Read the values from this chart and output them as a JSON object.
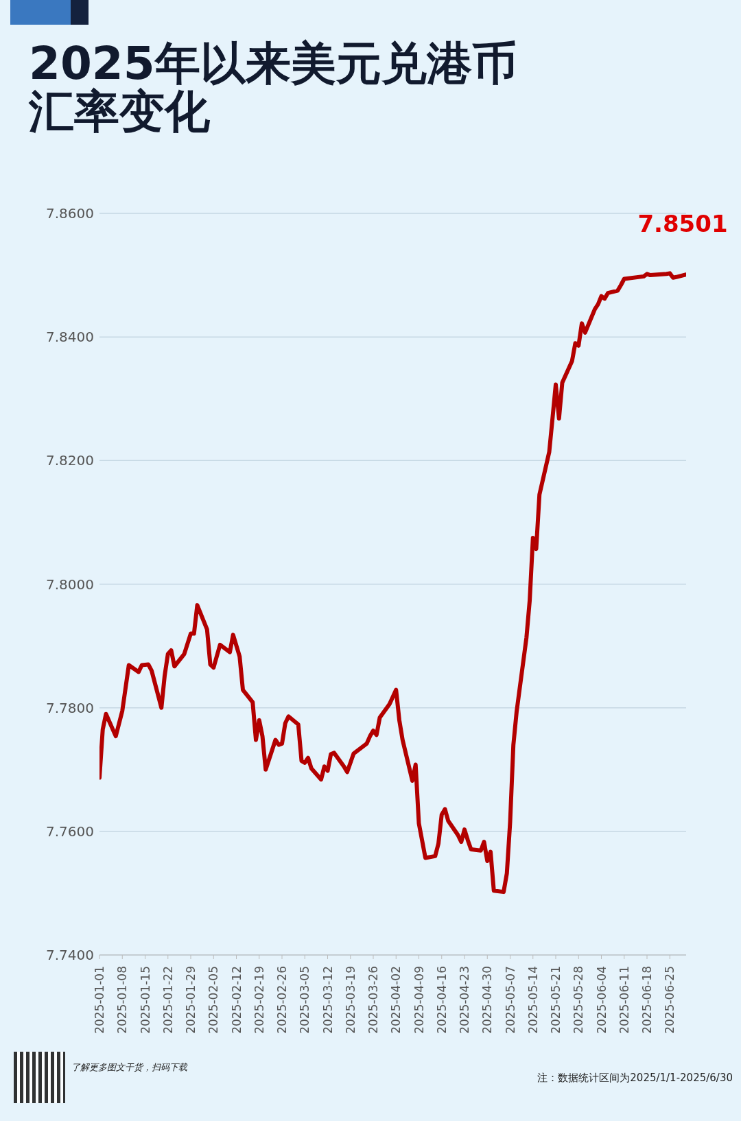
{
  "chart_data": {
    "type": "line",
    "title": "2025年以来美元兑港币汇率变化",
    "x": [
      "2025-01-01",
      "2025-01-02",
      "2025-01-03",
      "2025-01-06",
      "2025-01-08",
      "2025-01-10",
      "2025-01-13",
      "2025-01-14",
      "2025-01-16",
      "2025-01-17",
      "2025-01-20",
      "2025-01-21",
      "2025-01-22",
      "2025-01-23",
      "2025-01-24",
      "2025-01-27",
      "2025-01-29",
      "2025-01-30",
      "2025-01-31",
      "2025-02-03",
      "2025-02-04",
      "2025-02-05",
      "2025-02-07",
      "2025-02-10",
      "2025-02-11",
      "2025-02-13",
      "2025-02-14",
      "2025-02-17",
      "2025-02-18",
      "2025-02-19",
      "2025-02-20",
      "2025-02-21",
      "2025-02-24",
      "2025-02-25",
      "2025-02-26",
      "2025-02-27",
      "2025-02-28",
      "2025-03-03",
      "2025-03-04",
      "2025-03-05",
      "2025-03-06",
      "2025-03-07",
      "2025-03-10",
      "2025-03-11",
      "2025-03-12",
      "2025-03-13",
      "2025-03-14",
      "2025-03-17",
      "2025-03-18",
      "2025-03-20",
      "2025-03-24",
      "2025-03-25",
      "2025-03-26",
      "2025-03-27",
      "2025-03-28",
      "2025-03-31",
      "2025-04-02",
      "2025-04-03",
      "2025-04-04",
      "2025-04-07",
      "2025-04-08",
      "2025-04-09",
      "2025-04-11",
      "2025-04-14",
      "2025-04-15",
      "2025-04-16",
      "2025-04-17",
      "2025-04-18",
      "2025-04-21",
      "2025-04-22",
      "2025-04-23",
      "2025-04-24",
      "2025-04-25",
      "2025-04-28",
      "2025-04-29",
      "2025-04-30",
      "2025-05-01",
      "2025-05-02",
      "2025-05-05",
      "2025-05-06",
      "2025-05-07",
      "2025-05-08",
      "2025-05-09",
      "2025-05-12",
      "2025-05-13",
      "2025-05-14",
      "2025-05-15",
      "2025-05-16",
      "2025-05-19",
      "2025-05-20",
      "2025-05-21",
      "2025-05-22",
      "2025-05-23",
      "2025-05-26",
      "2025-05-27",
      "2025-05-28",
      "2025-05-29",
      "2025-05-30",
      "2025-06-02",
      "2025-06-03",
      "2025-06-04",
      "2025-06-05",
      "2025-06-06",
      "2025-06-09",
      "2025-06-10",
      "2025-06-11",
      "2025-06-17",
      "2025-06-18",
      "2025-06-19",
      "2025-06-24",
      "2025-06-25",
      "2025-06-26",
      "2025-06-27",
      "2025-06-30"
    ],
    "values": [
      7.7687,
      7.7765,
      7.779,
      7.7754,
      7.7795,
      7.7869,
      7.7858,
      7.7869,
      7.787,
      7.786,
      7.78,
      7.7852,
      7.7887,
      7.7893,
      7.7867,
      7.7887,
      7.792,
      7.792,
      7.7966,
      7.7927,
      7.787,
      7.7865,
      7.7902,
      7.789,
      7.7918,
      7.7883,
      7.7829,
      7.7809,
      7.7748,
      7.778,
      7.7754,
      7.77,
      7.7748,
      7.774,
      7.7742,
      7.7775,
      7.7786,
      7.7773,
      7.7714,
      7.7711,
      7.7719,
      7.7702,
      7.7684,
      7.7705,
      7.7698,
      7.7725,
      7.7727,
      7.7705,
      7.7696,
      7.7726,
      7.7742,
      7.7754,
      7.7763,
      7.7756,
      7.7784,
      7.7806,
      7.7829,
      7.778,
      7.7748,
      7.7682,
      7.7708,
      7.7613,
      7.7557,
      7.756,
      7.758,
      7.7627,
      7.7636,
      7.7617,
      7.7594,
      7.7583,
      7.7603,
      7.7586,
      7.7571,
      7.7569,
      7.7583,
      7.7552,
      7.7567,
      7.7504,
      7.7502,
      7.7532,
      7.7615,
      7.774,
      7.7794,
      7.7913,
      7.7973,
      7.8075,
      7.8057,
      7.8145,
      7.8214,
      7.8268,
      7.8323,
      7.8268,
      7.8326,
      7.8361,
      7.839,
      7.8386,
      7.8422,
      7.8407,
      7.8445,
      7.8453,
      7.8466,
      7.8462,
      7.8471,
      7.8475,
      7.8484,
      7.8494,
      7.8498,
      7.8502,
      7.85,
      7.8502,
      7.8503,
      7.8496,
      7.8497,
      7.8501
    ],
    "color": "#b30000",
    "xlim": [
      "2025-01-01",
      "2025-06-30"
    ],
    "xticks": [
      "2025-01-01",
      "2025-01-08",
      "2025-01-15",
      "2025-01-22",
      "2025-01-29",
      "2025-02-05",
      "2025-02-12",
      "2025-02-19",
      "2025-02-26",
      "2025-03-05",
      "2025-03-12",
      "2025-03-19",
      "2025-03-26",
      "2025-04-02",
      "2025-04-09",
      "2025-04-16",
      "2025-04-23",
      "2025-04-30",
      "2025-05-07",
      "2025-05-14",
      "2025-05-21",
      "2025-05-28",
      "2025-06-04",
      "2025-06-11",
      "2025-06-18",
      "2025-06-25"
    ],
    "ylim": [
      7.74,
      7.86
    ],
    "yticks": [
      {
        "value": 7.74,
        "label": "7.7400"
      },
      {
        "value": 7.76,
        "label": "7.7600"
      },
      {
        "value": 7.78,
        "label": "7.7800"
      },
      {
        "value": 7.8,
        "label": "7.8000"
      },
      {
        "value": 7.82,
        "label": "7.8200"
      },
      {
        "value": 7.84,
        "label": "7.8400"
      },
      {
        "value": 7.86,
        "label": "7.8600"
      }
    ],
    "grid": "y",
    "marker": "none",
    "line_style": "solid",
    "annotations": [
      {
        "text": "7.8501",
        "x": "2025-06-30",
        "y": 7.8501
      },
      "了解更多图文干货，扫码下载",
      "注：数据统计区间为2025/1/1-2025/6/30"
    ]
  }
}
